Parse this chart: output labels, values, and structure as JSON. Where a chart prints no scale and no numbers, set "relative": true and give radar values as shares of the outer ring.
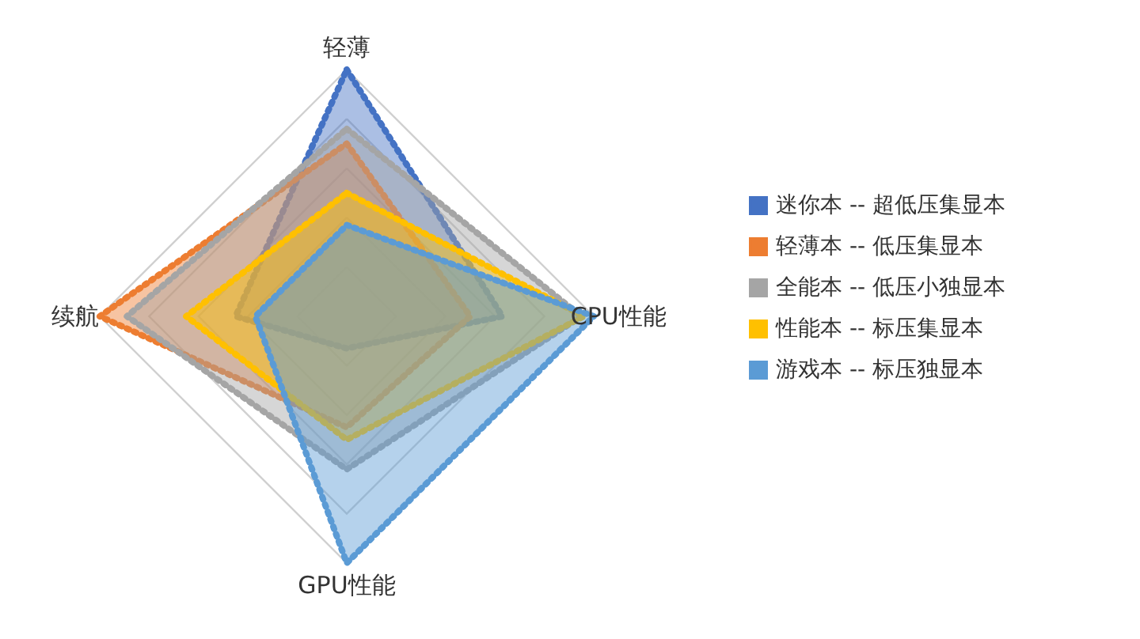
{
  "chart_data": {
    "type": "radar",
    "relative": true,
    "grid": true,
    "legend": "right",
    "line_style": "dotted",
    "marker": "none",
    "categories": [
      "轻薄",
      "CPU性能",
      "GPU性能",
      "续航"
    ],
    "series": [
      {
        "name": "迷你本 -- 超低压集显本",
        "color": "#4472c4",
        "values": [
          1.0,
          0.63,
          0.13,
          0.45
        ]
      },
      {
        "name": "轻薄本 -- 低压集显本",
        "color": "#ed7d31",
        "values": [
          0.7,
          0.5,
          0.45,
          1.0
        ]
      },
      {
        "name": "全能本 -- 低压小独显本",
        "color": "#a5a5a5",
        "values": [
          0.76,
          0.95,
          0.62,
          0.89
        ]
      },
      {
        "name": "性能本 -- 标压集显本",
        "color": "#ffc000",
        "values": [
          0.5,
          0.96,
          0.5,
          0.65
        ]
      },
      {
        "name": "游戏本 -- 标压独显本",
        "color": "#5b9bd5",
        "values": [
          0.37,
          1.0,
          1.0,
          0.37
        ]
      }
    ]
  }
}
